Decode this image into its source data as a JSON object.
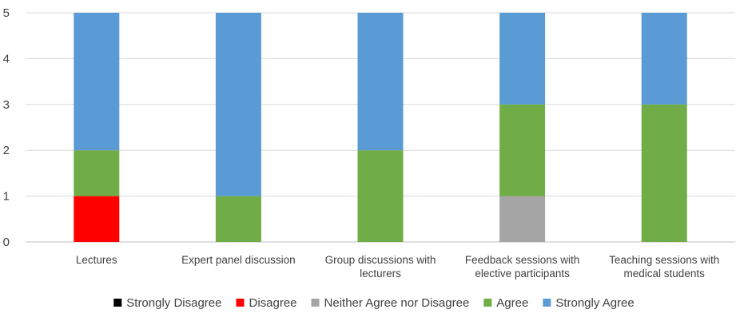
{
  "chart_data": {
    "type": "bar",
    "stacked": true,
    "title": "",
    "xlabel": "",
    "ylabel": "",
    "ylim": [
      0,
      5
    ],
    "yticks": [
      0,
      1,
      2,
      3,
      4,
      5
    ],
    "grid": "horizontal",
    "legend_position": "bottom",
    "categories": [
      [
        "Lectures"
      ],
      [
        "Expert panel discussion"
      ],
      [
        "Group discussions with",
        "lecturers"
      ],
      [
        "Feedback sessions with",
        "elective participants"
      ],
      [
        "Teaching sessions with",
        "medical students"
      ]
    ],
    "series": [
      {
        "name": "Strongly Disagree",
        "color": "#000000",
        "values": [
          0,
          0,
          0,
          0,
          0
        ]
      },
      {
        "name": "Disagree",
        "color": "#ff0000",
        "values": [
          1,
          0,
          0,
          0,
          0
        ]
      },
      {
        "name": "Neither Agree nor Disagree",
        "color": "#a5a5a5",
        "values": [
          0,
          0,
          0,
          1,
          0
        ]
      },
      {
        "name": "Agree",
        "color": "#70ad47",
        "values": [
          1,
          1,
          2,
          2,
          3
        ]
      },
      {
        "name": "Strongly Agree",
        "color": "#5b9bd5",
        "values": [
          3,
          4,
          3,
          2,
          2
        ]
      }
    ]
  }
}
